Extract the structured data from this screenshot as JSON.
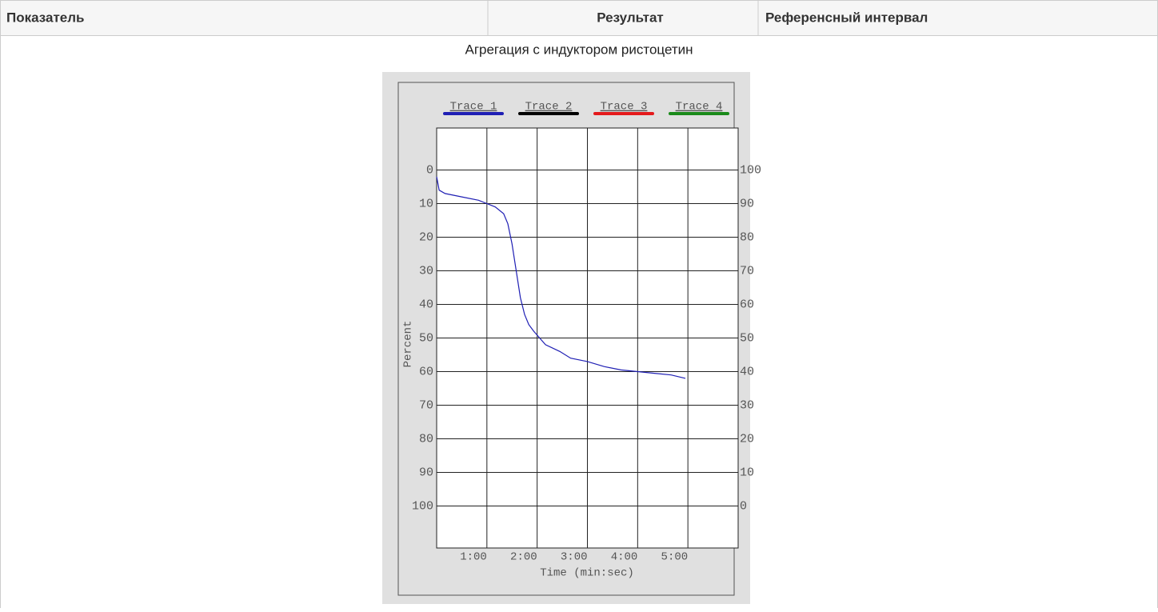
{
  "table": {
    "headers": [
      "Показатель",
      "Результат",
      "Референсный интервал"
    ],
    "caption": "Агрегация с индуктором ристоцетин"
  },
  "chart_data": {
    "type": "line",
    "x_label": "Time (min:sec)",
    "y_label": "Percent",
    "x": [
      0,
      3,
      10,
      30,
      50,
      60,
      70,
      80,
      85,
      90,
      95,
      100,
      105,
      110,
      116,
      130,
      147,
      160,
      180,
      200,
      220,
      240,
      260,
      280,
      297
    ],
    "series": [
      {
        "name": "Trace 1",
        "color": "#1f1fb4",
        "values": [
          2,
          6,
          7,
          8,
          9,
          10,
          11,
          13,
          16,
          22,
          30,
          38,
          43,
          46,
          48,
          52,
          54,
          56,
          57,
          58.5,
          59.5,
          60,
          60.5,
          61,
          62
        ]
      },
      {
        "name": "Trace 2",
        "color": "#000000",
        "values": [
          null,
          null,
          null,
          null,
          null,
          null,
          null,
          null,
          null,
          null,
          null,
          null,
          null,
          null,
          null,
          null,
          null,
          null,
          null,
          null,
          null,
          null,
          null,
          null,
          null
        ]
      },
      {
        "name": "Trace 3",
        "color": "#e41a1c",
        "values": [
          null,
          null,
          null,
          null,
          null,
          null,
          null,
          null,
          null,
          null,
          null,
          null,
          null,
          null,
          null,
          null,
          null,
          null,
          null,
          null,
          null,
          null,
          null,
          null,
          null
        ]
      },
      {
        "name": "Trace 4",
        "color": "#1a8a1a",
        "values": [
          null,
          null,
          null,
          null,
          null,
          null,
          null,
          null,
          null,
          null,
          null,
          null,
          null,
          null,
          null,
          null,
          null,
          null,
          null,
          null,
          null,
          null,
          null,
          null,
          null
        ]
      }
    ],
    "xlim": [
      0,
      360
    ],
    "xticks": [
      {
        "value": 60,
        "label": "1:00"
      },
      {
        "value": 120,
        "label": "2:00"
      },
      {
        "value": 180,
        "label": "3:00"
      },
      {
        "value": 240,
        "label": "4:00"
      },
      {
        "value": 300,
        "label": "5:00"
      }
    ],
    "ylim": [
      -12.5,
      112.5
    ],
    "y_inverted": true,
    "yticks": [
      0,
      10,
      20,
      30,
      40,
      50,
      60,
      70,
      80,
      90,
      100
    ],
    "y2lim": [
      -12.5,
      112.5
    ],
    "y2ticks": [
      100,
      90,
      80,
      70,
      60,
      50,
      40,
      30,
      20,
      10,
      0
    ],
    "grid": true
  }
}
